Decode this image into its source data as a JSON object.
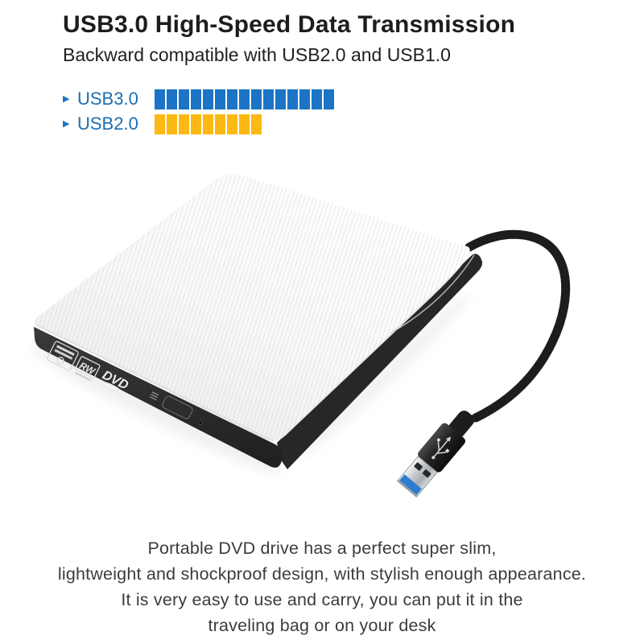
{
  "header": {
    "title": "USB3.0 High-Speed Data Transmission",
    "subtitle": "Backward compatible with USB2.0 and USB1.0"
  },
  "comparison": {
    "bullet_glyph": "▶",
    "rows": [
      {
        "label": "USB3.0",
        "segments": 15,
        "color": "#1b74c5"
      },
      {
        "label": "USB2.0",
        "segments": 9,
        "color": "#fcb813"
      }
    ]
  },
  "product": {
    "badges": {
      "rw": "RW",
      "dvd": "DVD"
    },
    "usb3_blue_hex": "#2f7dd1",
    "top_color": "#ffffff",
    "edge_color": "#2c2c2c",
    "cable_color": "#1d1d1d"
  },
  "footer": {
    "lines": [
      "Portable DVD drive has a perfect super slim,",
      "lightweight and shockproof design, with stylish enough appearance.",
      "It is very easy to use and carry, you can put it in the",
      "traveling bag or on your desk"
    ]
  }
}
